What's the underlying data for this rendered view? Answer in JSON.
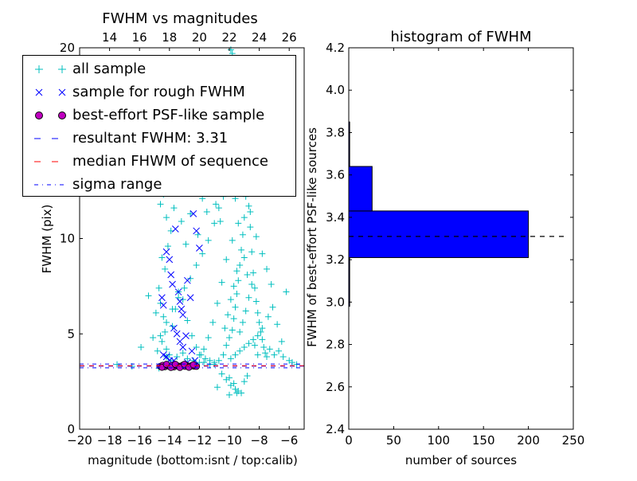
{
  "chart_data": [
    {
      "type": "scatter",
      "title": "FWHM vs magnitudes",
      "xlabel": "magnitude (bottom:isnt / top:calib)",
      "ylabel": "FWHM (pix)",
      "xlim": [
        -20,
        -5
      ],
      "ylim": [
        0,
        20
      ],
      "xticks": [
        -20,
        -18,
        -16,
        -14,
        -12,
        -10,
        -8,
        -6
      ],
      "xtick_labels": [
        "−20",
        "−18",
        "−16",
        "−14",
        "−12",
        "−10",
        "−8",
        "−6"
      ],
      "yticks": [
        0,
        5,
        10,
        20
      ],
      "ytick_labels": [
        "0",
        "5",
        "10",
        "20"
      ],
      "top_ticks": [
        14,
        16,
        18,
        20,
        22,
        24,
        26
      ],
      "top_tick_offset": 32,
      "grid": false,
      "legend_position": "top-left",
      "legend": [
        {
          "label": "all sample",
          "marker": "plus",
          "color": "#00bfbf"
        },
        {
          "label": "sample for rough FWHM",
          "marker": "x",
          "color": "#0000ff"
        },
        {
          "label": "best-effort PSF-like sample",
          "marker": "circle",
          "color": "#bf00bf"
        },
        {
          "label": "resultant FWHM: 3.31",
          "marker": "dashed",
          "color": "#0000ff"
        },
        {
          "label": "median FHWM of sequence",
          "marker": "dashed",
          "color": "#ff0000"
        },
        {
          "label": "sigma range",
          "marker": "dashdot",
          "color": "#0000ff"
        }
      ],
      "hlines": [
        {
          "y": 3.31,
          "style": "dashed",
          "color": "#0000ff"
        },
        {
          "y": 3.33,
          "style": "dashed",
          "color": "#ff0000"
        },
        {
          "y": 3.22,
          "style": "dashdot",
          "color": "#0000ff"
        },
        {
          "y": 3.42,
          "style": "dashdot",
          "color": "#0000ff"
        }
      ],
      "series": [
        {
          "marker": "plus",
          "color": "#00bfbf",
          "points": [
            [
              -14.6,
              11.8
            ],
            [
              -14.4,
              12.3
            ],
            [
              -14.2,
              11.1
            ],
            [
              -14.5,
              9.0
            ],
            [
              -14.3,
              8.4
            ],
            [
              -14.1,
              9.6
            ],
            [
              -13.9,
              10.4
            ],
            [
              -13.7,
              11.6
            ],
            [
              -13.5,
              12.8
            ],
            [
              -13.2,
              10.9
            ],
            [
              -12.9,
              9.7
            ],
            [
              -12.6,
              11.3
            ],
            [
              -12.3,
              12.6
            ],
            [
              -12.1,
              10.2
            ],
            [
              -11.8,
              12.1
            ],
            [
              -11.5,
              11.4
            ],
            [
              -11.2,
              12.7
            ],
            [
              -10.9,
              11.8
            ],
            [
              -10.6,
              10.9
            ],
            [
              -14.7,
              7.4
            ],
            [
              -14.6,
              6.6
            ],
            [
              -14.4,
              5.9
            ],
            [
              -14.3,
              5.1
            ],
            [
              -14.5,
              4.6
            ],
            [
              -14.2,
              4.2
            ],
            [
              -14.0,
              3.9
            ],
            [
              -13.8,
              5.4
            ],
            [
              -13.6,
              6.3
            ],
            [
              -13.4,
              7.2
            ],
            [
              -13.1,
              6.8
            ],
            [
              -12.8,
              5.7
            ],
            [
              -12.5,
              4.9
            ],
            [
              -12.2,
              4.3
            ],
            [
              -11.9,
              3.9
            ],
            [
              -11.6,
              3.7
            ],
            [
              -11.3,
              3.6
            ],
            [
              -11.0,
              3.5
            ],
            [
              -10.7,
              3.6
            ],
            [
              -10.4,
              3.9
            ],
            [
              -10.2,
              4.4
            ],
            [
              -10.0,
              4.8
            ],
            [
              -9.8,
              5.2
            ],
            [
              -9.7,
              5.8
            ],
            [
              -9.6,
              6.4
            ],
            [
              -9.5,
              7.1
            ],
            [
              -9.4,
              7.8
            ],
            [
              -9.3,
              8.6
            ],
            [
              -9.2,
              9.4
            ],
            [
              -9.1,
              10.2
            ],
            [
              -9.0,
              11.1
            ],
            [
              -8.9,
              12.2
            ],
            [
              -8.8,
              13.5
            ],
            [
              -8.7,
              11.7
            ],
            [
              -8.6,
              10.6
            ],
            [
              -8.5,
              9.3
            ],
            [
              -8.4,
              8.2
            ],
            [
              -8.3,
              7.4
            ],
            [
              -8.2,
              6.7
            ],
            [
              -8.1,
              6.1
            ],
            [
              -8.0,
              5.6
            ],
            [
              -7.9,
              5.1
            ],
            [
              -7.8,
              4.7
            ],
            [
              -7.7,
              4.3
            ],
            [
              -7.6,
              4.0
            ],
            [
              -7.5,
              3.8
            ],
            [
              -9.9,
              3.7
            ],
            [
              -9.6,
              3.9
            ],
            [
              -9.3,
              4.1
            ],
            [
              -9.0,
              4.3
            ],
            [
              -8.7,
              4.5
            ],
            [
              -8.4,
              4.7
            ],
            [
              -8.1,
              4.9
            ],
            [
              -7.8,
              5.3
            ],
            [
              -7.4,
              5.9
            ],
            [
              -7.1,
              6.4
            ],
            [
              -6.8,
              5.5
            ],
            [
              -6.5,
              4.6
            ],
            [
              -6.2,
              7.2
            ],
            [
              -10.3,
              5.3
            ],
            [
              -10.1,
              6.0
            ],
            [
              -9.9,
              6.8
            ],
            [
              -9.7,
              7.5
            ],
            [
              -9.5,
              8.3
            ],
            [
              -9.3,
              5.1
            ],
            [
              -9.1,
              5.6
            ],
            [
              -8.9,
              6.2
            ],
            [
              -8.7,
              6.9
            ],
            [
              -8.5,
              7.6
            ],
            [
              -8.3,
              4.4
            ],
            [
              -8.1,
              3.9
            ],
            [
              -10.5,
              2.9
            ],
            [
              -10.2,
              2.6
            ],
            [
              -9.9,
              2.3
            ],
            [
              -9.6,
              2.1
            ],
            [
              -9.4,
              2.0
            ],
            [
              -9.2,
              1.9
            ],
            [
              -9.7,
              2.4
            ],
            [
              -10.0,
              2.7
            ],
            [
              -10.8,
              2.2
            ],
            [
              -10.0,
              1.8
            ],
            [
              -9.5,
              1.9
            ],
            [
              -9.0,
              2.5
            ],
            [
              -8.8,
              2.8
            ],
            [
              -9.9,
              19.9
            ],
            [
              -9.8,
              19.7
            ],
            [
              -9.3,
              18.9
            ],
            [
              -10.1,
              16.2
            ],
            [
              -8.9,
              15.7
            ],
            [
              -9.5,
              14.8
            ],
            [
              -8.6,
              14.3
            ],
            [
              -8.3,
              13.2
            ],
            [
              -12.4,
              14.2
            ],
            [
              -12.1,
              15.8
            ],
            [
              -11.8,
              16.9
            ],
            [
              -11.5,
              17.4
            ],
            [
              -10.7,
              16.1
            ],
            [
              -10.4,
              15.1
            ],
            [
              -11.3,
              13.8
            ],
            [
              -12.7,
              13.3
            ],
            [
              -13.0,
              12.9
            ],
            [
              -13.6,
              13.1
            ],
            [
              -14.3,
              13.4
            ],
            [
              -12.8,
              16.4
            ],
            [
              -11.9,
              18.2
            ],
            [
              -13.3,
              17.1
            ],
            [
              -9.6,
              12.1
            ],
            [
              -9.4,
              10.8
            ],
            [
              -9.8,
              9.9
            ],
            [
              -9.0,
              9.0
            ],
            [
              -8.8,
              8.1
            ],
            [
              -15.4,
              7.0
            ],
            [
              -14.9,
              6.1
            ],
            [
              -14.8,
              4.1
            ],
            [
              -15.1,
              4.8
            ],
            [
              -14.2,
              3.8
            ],
            [
              -13.9,
              3.6
            ],
            [
              -13.5,
              3.8
            ],
            [
              -13.1,
              4.0
            ],
            [
              -12.8,
              3.7
            ],
            [
              -12.4,
              3.6
            ],
            [
              -12.0,
              3.5
            ],
            [
              -11.7,
              3.5
            ],
            [
              -11.3,
              3.4
            ],
            [
              -11.0,
              3.4
            ],
            [
              -16.5,
              3.3
            ],
            [
              -17.5,
              3.4
            ],
            [
              -14.7,
              3.2
            ],
            [
              -15.9,
              4.3
            ],
            [
              -7.3,
              4.2
            ],
            [
              -7.0,
              3.9
            ],
            [
              -6.7,
              4.1
            ],
            [
              -6.4,
              3.8
            ],
            [
              -6.0,
              3.6
            ],
            [
              -5.8,
              3.5
            ],
            [
              -5.5,
              3.4
            ],
            [
              -7.2,
              7.6
            ],
            [
              -7.5,
              8.4
            ],
            [
              -7.8,
              9.2
            ],
            [
              -8.2,
              10.1
            ],
            [
              -8.6,
              11.4
            ],
            [
              -9.1,
              12.9
            ],
            [
              -9.4,
              13.8
            ],
            [
              -9.7,
              14.5
            ],
            [
              -10.1,
              13.1
            ],
            [
              -10.4,
              12.2
            ],
            [
              -10.7,
              11.6
            ],
            [
              -11.0,
              10.8
            ],
            [
              -11.4,
              9.9
            ],
            [
              -11.8,
              9.2
            ],
            [
              -12.2,
              8.6
            ],
            [
              -12.6,
              7.9
            ],
            [
              -13.0,
              7.4
            ],
            [
              -13.4,
              6.9
            ],
            [
              -13.8,
              6.3
            ],
            [
              -14.2,
              5.6
            ],
            [
              -14.6,
              4.9
            ],
            [
              -10.2,
              8.9
            ],
            [
              -10.5,
              7.7
            ],
            [
              -10.8,
              6.6
            ],
            [
              -11.1,
              5.6
            ],
            [
              -11.4,
              4.8
            ],
            [
              -11.7,
              4.2
            ],
            [
              -12.0,
              3.9
            ]
          ]
        },
        {
          "marker": "x",
          "color": "#0000ff",
          "points": [
            [
              -14.5,
              6.9
            ],
            [
              -14.4,
              6.5
            ],
            [
              -14.2,
              9.3
            ],
            [
              -14.0,
              8.9
            ],
            [
              -13.9,
              8.1
            ],
            [
              -13.8,
              7.6
            ],
            [
              -13.6,
              10.5
            ],
            [
              -13.4,
              7.2
            ],
            [
              -13.3,
              6.7
            ],
            [
              -13.2,
              6.3
            ],
            [
              -13.1,
              6.0
            ],
            [
              -12.8,
              7.8
            ],
            [
              -12.6,
              6.9
            ],
            [
              -12.4,
              11.3
            ],
            [
              -12.2,
              10.4
            ],
            [
              -12.0,
              9.5
            ],
            [
              -13.7,
              5.3
            ],
            [
              -13.5,
              5.0
            ],
            [
              -13.3,
              4.6
            ],
            [
              -13.1,
              4.3
            ],
            [
              -12.9,
              4.9
            ],
            [
              -14.4,
              3.9
            ],
            [
              -14.2,
              3.8
            ],
            [
              -14.0,
              3.6
            ],
            [
              -13.7,
              3.6
            ],
            [
              -12.8,
              3.5
            ],
            [
              -12.5,
              4.1
            ],
            [
              -12.3,
              3.6
            ]
          ]
        },
        {
          "marker": "circle",
          "color": "#bf00bf",
          "points": [
            [
              -14.6,
              3.3
            ],
            [
              -14.45,
              3.35
            ],
            [
              -14.3,
              3.28
            ],
            [
              -14.15,
              3.36
            ],
            [
              -14.0,
              3.3
            ],
            [
              -13.85,
              3.34
            ],
            [
              -13.7,
              3.27
            ],
            [
              -13.55,
              3.35
            ],
            [
              -13.4,
              3.31
            ],
            [
              -13.25,
              3.29
            ],
            [
              -13.1,
              3.36
            ],
            [
              -12.95,
              3.3
            ],
            [
              -12.8,
              3.33
            ],
            [
              -12.65,
              3.28
            ],
            [
              -12.5,
              3.34
            ],
            [
              -12.35,
              3.31
            ],
            [
              -12.2,
              3.3
            ],
            [
              -14.5,
              3.25
            ],
            [
              -14.2,
              3.4
            ],
            [
              -13.9,
              3.24
            ],
            [
              -13.6,
              3.4
            ],
            [
              -13.3,
              3.24
            ],
            [
              -13.0,
              3.4
            ],
            [
              -12.7,
              3.25
            ],
            [
              -12.4,
              3.38
            ]
          ]
        }
      ]
    },
    {
      "type": "bar",
      "orientation": "horizontal",
      "title": "histogram of FWHM",
      "xlabel": "number of sources",
      "ylabel": "FWHM of best-effort PSF-like sources",
      "xlim": [
        0,
        250
      ],
      "ylim": [
        2.4,
        4.2
      ],
      "xticks": [
        0,
        50,
        100,
        150,
        200,
        250
      ],
      "xtick_labels": [
        "0",
        "50",
        "100",
        "150",
        "200",
        "250"
      ],
      "yticks": [
        2.4,
        2.6,
        2.8,
        3.0,
        3.2,
        3.4,
        3.6,
        3.8,
        4.0,
        4.2
      ],
      "ytick_labels": [
        "2.4",
        "2.6",
        "2.8",
        "3.0",
        "3.2",
        "3.4",
        "3.6",
        "3.8",
        "4.0",
        "4.2"
      ],
      "grid": false,
      "bar_color": "#0000ff",
      "bins": [
        {
          "from": 2.98,
          "to": 3.21,
          "count": 1
        },
        {
          "from": 3.21,
          "to": 3.43,
          "count": 200
        },
        {
          "from": 3.43,
          "to": 3.64,
          "count": 26
        },
        {
          "from": 3.64,
          "to": 3.85,
          "count": 1
        }
      ],
      "hline": {
        "y": 3.31,
        "style": "dashed",
        "color": "#000000",
        "x_end": 240
      }
    }
  ]
}
